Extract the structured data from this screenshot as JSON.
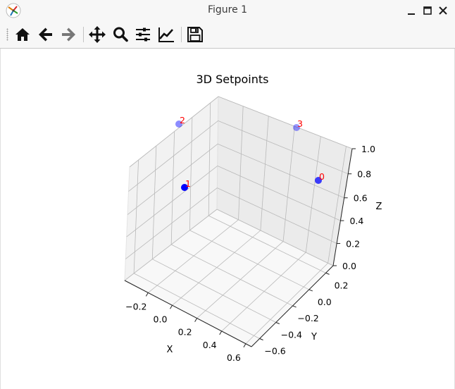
{
  "window": {
    "title": "Figure 1",
    "buttons": [
      "minimize-icon",
      "maximize-icon",
      "close-icon"
    ]
  },
  "toolbar": {
    "tools": [
      "home-icon",
      "back-arrow-icon",
      "forward-arrow-icon",
      "pan-icon",
      "zoom-icon",
      "subplots-icon",
      "customize-icon",
      "save-icon"
    ]
  },
  "chart_data": {
    "type": "scatter3d",
    "title": "3D Setpoints",
    "xlabel": "X",
    "ylabel": "Y",
    "zlabel": "Z",
    "xticks": [
      "−0.2",
      "0.0",
      "0.2",
      "0.4",
      "0.6"
    ],
    "yticks": [
      "−0.6",
      "−0.4",
      "−0.2",
      "0.0",
      "0.2"
    ],
    "zticks": [
      "0.0",
      "0.2",
      "0.4",
      "0.6",
      "0.8",
      "1.0"
    ],
    "point_color": "#0000ff",
    "label_color": "#ff0000",
    "points": [
      {
        "label": "0",
        "depth_alpha": 0.75
      },
      {
        "label": "1",
        "depth_alpha": 1.0
      },
      {
        "label": "2",
        "depth_alpha": 0.45
      },
      {
        "label": "3",
        "depth_alpha": 0.4
      }
    ]
  }
}
